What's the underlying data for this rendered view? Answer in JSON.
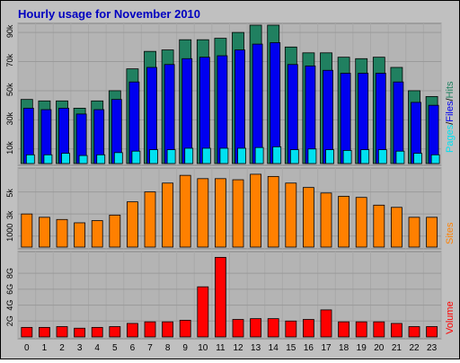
{
  "title": "Hourly usage for November 2010",
  "colors": {
    "background": "#c0c0c0",
    "panel": "#b8b8b8",
    "title": "#0000c0",
    "hits": "#208060",
    "files": "#0000f0",
    "pages": "#00e0f0",
    "sites": "#ff8000",
    "volume": "#ff0000",
    "grid": "#a0a0a0"
  },
  "chart_data": [
    {
      "type": "bar",
      "title": "Hourly usage for November 2010",
      "categories": [
        "0",
        "1",
        "2",
        "3",
        "4",
        "5",
        "6",
        "7",
        "8",
        "9",
        "10",
        "11",
        "12",
        "13",
        "14",
        "15",
        "16",
        "17",
        "18",
        "19",
        "20",
        "21",
        "22",
        "23"
      ],
      "series": [
        {
          "name": "Hits",
          "color": "#208060",
          "values": [
            44000,
            43000,
            43000,
            38000,
            43000,
            50000,
            65000,
            77000,
            78000,
            85000,
            85000,
            86000,
            90000,
            95000,
            95000,
            80000,
            76000,
            76000,
            73000,
            72000,
            73000,
            66000,
            50000,
            46000
          ]
        },
        {
          "name": "Files",
          "color": "#0000f0",
          "values": [
            38000,
            37000,
            38000,
            34000,
            37000,
            44000,
            56000,
            66000,
            68000,
            72000,
            73000,
            74000,
            78000,
            82000,
            83000,
            68000,
            67000,
            64000,
            62000,
            62000,
            62000,
            56000,
            42000,
            40000
          ]
        },
        {
          "name": "Pages",
          "color": "#00e0f0",
          "values": [
            6000,
            6000,
            7000,
            5500,
            6000,
            7500,
            8500,
            9500,
            9500,
            10500,
            10500,
            10500,
            10500,
            11000,
            11500,
            9500,
            10000,
            9500,
            9000,
            9500,
            9500,
            8500,
            7000,
            6000
          ]
        }
      ],
      "yticks": [
        "10k",
        "30k",
        "50k",
        "70k",
        "90k"
      ],
      "ylim": [
        0,
        95000
      ],
      "ylabel_parts": [
        "Pages",
        "/",
        "Files",
        "/",
        "Hits"
      ]
    },
    {
      "type": "bar",
      "categories": [
        "0",
        "1",
        "2",
        "3",
        "4",
        "5",
        "6",
        "7",
        "8",
        "9",
        "10",
        "11",
        "12",
        "13",
        "14",
        "15",
        "16",
        "17",
        "18",
        "19",
        "20",
        "21",
        "22",
        "23"
      ],
      "series": [
        {
          "name": "Sites",
          "color": "#ff8000",
          "values": [
            3000,
            2700,
            2500,
            2200,
            2400,
            2900,
            4100,
            5000,
            5800,
            6500,
            6200,
            6200,
            6100,
            6600,
            6400,
            5800,
            5400,
            4900,
            4600,
            4500,
            3800,
            3600,
            2700,
            2700
          ]
        }
      ],
      "yticks": [
        "1000",
        "3k",
        "5k"
      ],
      "ylim": [
        0,
        7000
      ],
      "ylabel": "Sites"
    },
    {
      "type": "bar",
      "categories": [
        "0",
        "1",
        "2",
        "3",
        "4",
        "5",
        "6",
        "7",
        "8",
        "9",
        "10",
        "11",
        "12",
        "13",
        "14",
        "15",
        "16",
        "17",
        "18",
        "19",
        "20",
        "21",
        "22",
        "23"
      ],
      "series": [
        {
          "name": "Volume",
          "color": "#ff0000",
          "values": [
            1.2,
            1.2,
            1.3,
            1.1,
            1.2,
            1.3,
            1.7,
            1.9,
            1.9,
            2.1,
            6.3,
            10.0,
            2.2,
            2.3,
            2.3,
            2.0,
            2.2,
            3.4,
            1.9,
            1.9,
            1.9,
            1.7,
            1.3,
            1.3
          ]
        }
      ],
      "yticks": [
        "2G",
        "4G",
        "6G",
        "8G"
      ],
      "ylim": [
        0,
        10.5
      ],
      "ylabel": "Volume"
    }
  ]
}
